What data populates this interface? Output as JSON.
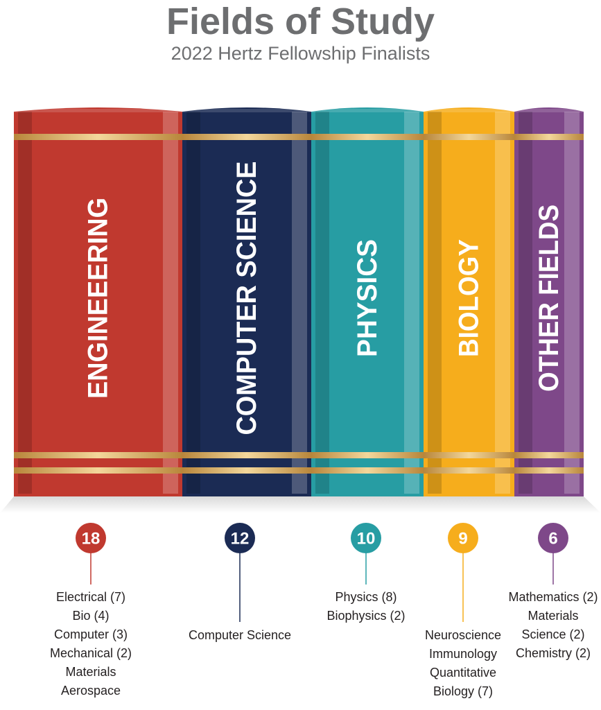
{
  "title": "Fields of Study",
  "subtitle": "2022 Hertz Fellowship Finalists",
  "chart_data": {
    "type": "bar",
    "title": "Fields of Study",
    "subtitle": "2022 Hertz Fellowship Finalists",
    "categories": [
      "ENGINEEERING",
      "COMPUTER SCIENCE",
      "PHYSICS",
      "BIOLOGY",
      "OTHER FIELDS"
    ],
    "values": [
      18,
      12,
      10,
      9,
      6
    ],
    "colors": [
      "#c0392f",
      "#1b2b54",
      "#279da3",
      "#f6ad1c",
      "#7e4889"
    ],
    "details": [
      [
        "Electrical (7)",
        "Bio (4)",
        "Computer (3)",
        "Mechanical (2)",
        "Materials",
        "Aerospace"
      ],
      [
        "Computer Science"
      ],
      [
        "Physics (8)",
        "Biophysics (2)"
      ],
      [
        "Neuroscience",
        "Immunology",
        "Quantitative",
        "Biology (7)"
      ],
      [
        "Mathematics (2)",
        "Materials",
        "Science (2)",
        "Chemistry (2)"
      ]
    ]
  }
}
